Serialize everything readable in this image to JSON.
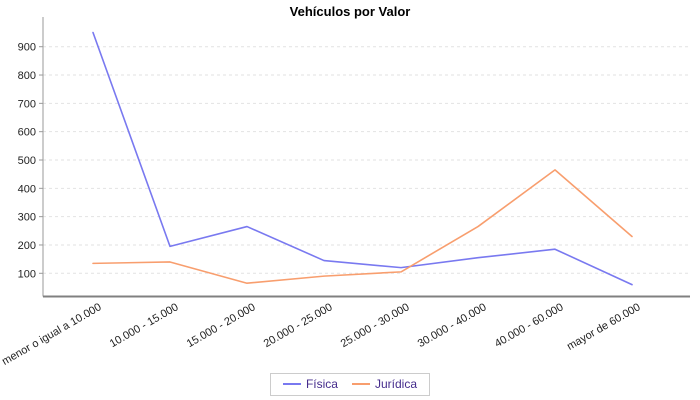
{
  "chart_data": {
    "type": "line",
    "title": "Vehículos por Valor",
    "categories": [
      "menor o igual a 10.000",
      "10.000 - 15.000",
      "15.000 - 20.000",
      "20.000 - 25.000",
      "25.000 - 30.000",
      "30.000 - 40.000",
      "40.000 - 60.000",
      "mayor de 60.000"
    ],
    "series": [
      {
        "name": "Física",
        "color": "#7979f0",
        "values": [
          950,
          195,
          265,
          145,
          120,
          155,
          185,
          60
        ]
      },
      {
        "name": "Jurídica",
        "color": "#f89e6e",
        "values": [
          135,
          140,
          65,
          90,
          105,
          265,
          465,
          230
        ]
      }
    ],
    "xlabel": "",
    "ylabel": "",
    "y_ticks": [
      100,
      200,
      300,
      400,
      500,
      600,
      700,
      800,
      900
    ],
    "ylim": [
      15,
      975
    ],
    "grid": "horizontal-dashed",
    "legend_position": "bottom",
    "legend_text_color": "#452c8c",
    "x_label_rotation_deg": -30
  },
  "colors": {
    "background": "#ffffff",
    "gridline": "#e2e2e2",
    "x_axis_line": "#808080",
    "y_axis_line": "#9a9a9a",
    "tick_label": "#222222"
  }
}
